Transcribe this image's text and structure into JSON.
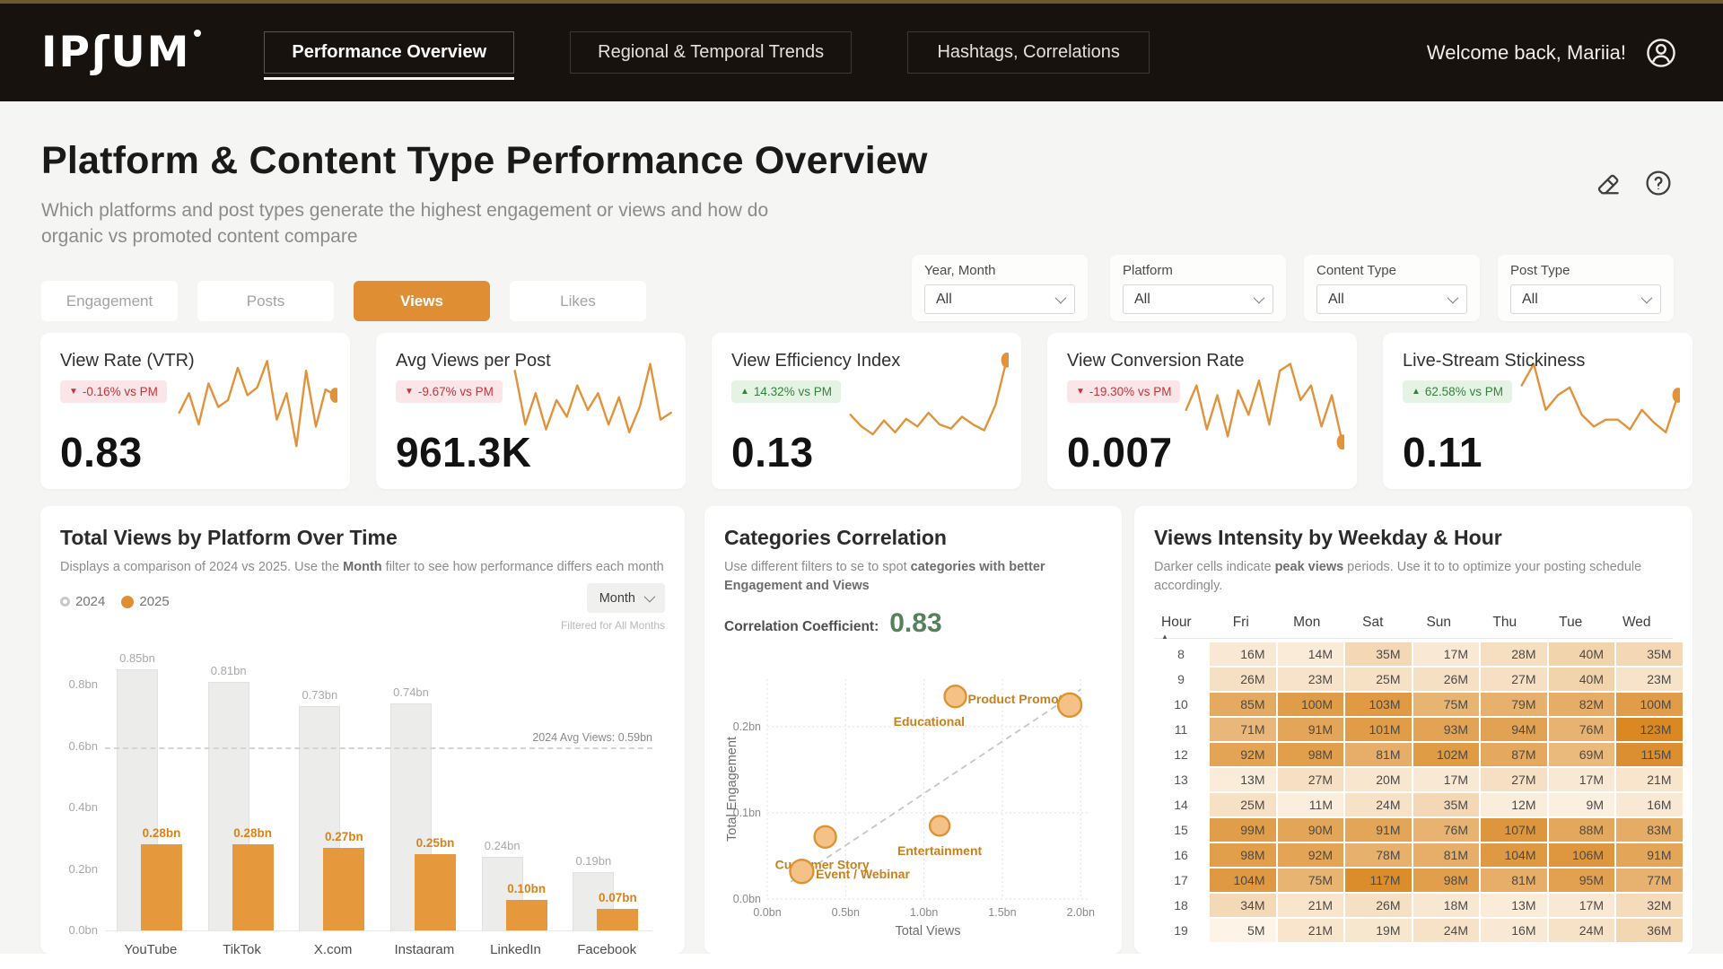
{
  "colors": {
    "accent_orange": "#e08e33",
    "bar_orange": "#e5983c",
    "bar_gray": "#ececea",
    "spark_orange": "#e0933b",
    "badge_red_text": "#c2353a",
    "badge_green_text": "#377f3d",
    "coefficient_green": "#55805c",
    "heat_low": "#fef8ef",
    "heat_high": "#d9861f",
    "nav_bg": "#17120e",
    "nav_gold_trim": "#6d5a2c"
  },
  "nav": {
    "logo_text": "IPʃUM",
    "tabs": [
      {
        "label": "Performance Overview",
        "active": true
      },
      {
        "label": "Regional & Temporal Trends",
        "active": false
      },
      {
        "label": "Hashtags, Correlations",
        "active": false
      }
    ],
    "welcome": "Welcome back, Mariia!"
  },
  "header": {
    "title": "Platform & Content Type Performance Overview",
    "subtitle": "Which platforms and post types generate the highest engagement or views and how do organic vs promoted content compare"
  },
  "segments": [
    {
      "label": "Engagement",
      "active": false
    },
    {
      "label": "Posts",
      "active": false
    },
    {
      "label": "Views",
      "active": true
    },
    {
      "label": "Likes",
      "active": false
    }
  ],
  "filters": [
    {
      "label": "Year, Month",
      "value": "All"
    },
    {
      "label": "Platform",
      "value": "All"
    },
    {
      "label": "Content Type",
      "value": "All"
    },
    {
      "label": "Post Type",
      "value": "All"
    }
  ],
  "kpis": [
    {
      "title": "View Rate (VTR)",
      "direction": "down",
      "delta": "-0.16% vs PM",
      "value": "0.83",
      "spark": [
        0.42,
        0.62,
        0.3,
        0.72,
        0.48,
        0.55,
        0.88,
        0.6,
        0.68,
        0.95,
        0.35,
        0.62,
        0.08,
        0.85,
        0.28,
        0.66,
        0.6
      ],
      "dot": true
    },
    {
      "title": "Avg Views per Post",
      "direction": "down",
      "delta": "-9.67% vs PM",
      "value": "961.3K",
      "spark": [
        0.85,
        0.3,
        0.62,
        0.25,
        0.55,
        0.38,
        0.7,
        0.45,
        0.62,
        0.3,
        0.58,
        0.22,
        0.48,
        0.92,
        0.35,
        0.42
      ],
      "dot": false
    },
    {
      "title": "View Efficiency Index",
      "direction": "up",
      "delta": "14.32% vs PM",
      "value": "0.13",
      "spark": [
        0.4,
        0.28,
        0.2,
        0.34,
        0.22,
        0.36,
        0.28,
        0.42,
        0.3,
        0.26,
        0.38,
        0.3,
        0.24,
        0.5,
        0.96
      ],
      "dot": true
    },
    {
      "title": "View Conversion Rate",
      "direction": "down",
      "delta": "-19.30% vs PM",
      "value": "0.007",
      "spark": [
        0.45,
        0.7,
        0.25,
        0.6,
        0.18,
        0.65,
        0.4,
        0.75,
        0.3,
        0.85,
        0.92,
        0.55,
        0.7,
        0.28,
        0.6,
        0.12
      ],
      "dot": true
    },
    {
      "title": "Live-Stream Stickiness",
      "direction": "up",
      "delta": "62.58% vs PM",
      "value": "0.11",
      "spark": [
        0.7,
        0.92,
        0.45,
        0.6,
        0.68,
        0.4,
        0.28,
        0.35,
        0.35,
        0.25,
        0.45,
        0.32,
        0.22,
        0.6
      ],
      "dot": true
    }
  ],
  "chart_data": [
    {
      "type": "bar",
      "title": "Total Views by Platform Over Time",
      "subtitle_pre": "Displays a comparison of 2024 vs 2025. Use the ",
      "subtitle_bold": "Month",
      "subtitle_post": " filter to see how performance differs each month",
      "categories": [
        "YouTube",
        "TikTok",
        "X.com",
        "Instagram",
        "LinkedIn",
        "Facebook"
      ],
      "series": [
        {
          "name": "2024",
          "values": [
            0.85,
            0.81,
            0.73,
            0.74,
            0.24,
            0.19
          ]
        },
        {
          "name": "2025",
          "values": [
            0.28,
            0.28,
            0.27,
            0.25,
            0.1,
            0.07
          ]
        }
      ],
      "unit": "bn",
      "yticks": [
        0,
        0.2,
        0.4,
        0.6,
        0.8
      ],
      "ylim": [
        0,
        0.88
      ],
      "avg_line": {
        "value": 0.59,
        "label": "2024 Avg Views: 0.59bn"
      },
      "toolbar": {
        "month_button": "Month",
        "filter_note": "Filtered for All Months"
      },
      "legend_position": "top-left",
      "grid": false
    },
    {
      "type": "scatter",
      "title": "Categories Correlation",
      "desc_pre": "Use different filters to se to spot ",
      "desc_bold": "categories with better Engagement and Views",
      "coefficient_label": "Correlation Coefficient:",
      "coefficient_value": "0.83",
      "xlabel": "Total Views",
      "ylabel": "Total Engagement",
      "unit": "bn",
      "xticks": [
        0,
        0.5,
        1.0,
        1.5,
        2.0
      ],
      "yticks": [
        0,
        0.1,
        0.2
      ],
      "xlim": [
        0,
        2.05
      ],
      "ylim": [
        0,
        0.255
      ],
      "grid": true,
      "trendline": {
        "x1": 0.15,
        "y1": 0.02,
        "x2": 2.0,
        "y2": 0.243
      },
      "points": [
        {
          "label": "Product Promotion",
          "x": 1.2,
          "y": 0.235,
          "r": 12,
          "label_x": 1.28,
          "label_y": 0.232,
          "anchor": "start"
        },
        {
          "label": "Educational",
          "x": 1.93,
          "y": 0.225,
          "r": 13,
          "label_x": 1.26,
          "label_y": 0.206,
          "anchor": "end"
        },
        {
          "label": "Entertainment",
          "x": 1.1,
          "y": 0.085,
          "r": 11,
          "label_x": 1.1,
          "label_y": 0.056,
          "anchor": "middle"
        },
        {
          "label": "Customer Story",
          "x": 0.37,
          "y": 0.072,
          "r": 12,
          "label_x": 0.35,
          "label_y": 0.04,
          "anchor": "middle"
        },
        {
          "label": "Event / Webinar",
          "x": 0.22,
          "y": 0.032,
          "r": 13,
          "label_x": 0.31,
          "label_y": 0.029,
          "anchor": "start"
        }
      ]
    },
    {
      "type": "heatmap",
      "title": "Views Intensity by Weekday & Hour",
      "desc_pre": "Darker cells indicate ",
      "desc_bold": "peak views",
      "desc_post": " periods. Use it to  to optimize your posting schedule accordingly.",
      "columns": [
        "Hour",
        "Fri",
        "Mon",
        "Sat",
        "Sun",
        "Thu",
        "Tue",
        "Wed"
      ],
      "unit": "M",
      "rows": [
        {
          "hour": 8,
          "values": [
            16,
            14,
            35,
            17,
            28,
            40,
            35
          ]
        },
        {
          "hour": 9,
          "values": [
            26,
            23,
            25,
            26,
            27,
            40,
            23
          ]
        },
        {
          "hour": 10,
          "values": [
            85,
            100,
            103,
            75,
            79,
            82,
            100
          ]
        },
        {
          "hour": 11,
          "values": [
            71,
            91,
            101,
            93,
            94,
            76,
            123
          ]
        },
        {
          "hour": 12,
          "values": [
            92,
            98,
            81,
            102,
            87,
            69,
            115
          ]
        },
        {
          "hour": 13,
          "values": [
            13,
            27,
            20,
            17,
            27,
            17,
            21
          ]
        },
        {
          "hour": 14,
          "values": [
            25,
            11,
            24,
            35,
            12,
            9,
            16
          ]
        },
        {
          "hour": 15,
          "values": [
            99,
            90,
            91,
            76,
            107,
            88,
            83
          ]
        },
        {
          "hour": 16,
          "values": [
            98,
            92,
            78,
            81,
            104,
            106,
            91
          ]
        },
        {
          "hour": 17,
          "values": [
            104,
            75,
            117,
            98,
            81,
            95,
            77
          ]
        },
        {
          "hour": 18,
          "values": [
            34,
            21,
            26,
            18,
            13,
            17,
            32
          ]
        },
        {
          "hour": 19,
          "values": [
            5,
            21,
            19,
            24,
            16,
            24,
            36
          ]
        }
      ],
      "color_scale": {
        "low": "#fef8ef",
        "high": "#d9861f",
        "max": 125
      }
    }
  ]
}
